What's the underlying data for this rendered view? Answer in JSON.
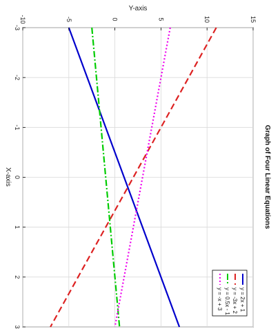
{
  "chart_data": {
    "type": "line",
    "orientation": "rotated-90-clockwise",
    "title": "Graph of Four Linear Equations",
    "xlabel": "X-axis",
    "ylabel": "Y-axis",
    "xlim": [
      -3,
      3
    ],
    "ylim": [
      -10,
      15
    ],
    "xticks": [
      -3,
      -2,
      -1,
      0,
      1,
      2,
      3
    ],
    "yticks": [
      -10,
      -5,
      0,
      5,
      10,
      15
    ],
    "grid": true,
    "legend_position": "bottom-right (rotated)",
    "series": [
      {
        "name": "y = 2x + 1",
        "color": "#0000cc",
        "dash": "solid",
        "x": [
          -3,
          3
        ],
        "y": [
          -5,
          7
        ]
      },
      {
        "name": "y = -3x + 2",
        "color": "#dd2222",
        "dash": "dashed",
        "x": [
          -3,
          3
        ],
        "y": [
          11,
          -7
        ]
      },
      {
        "name": "y = 0.5x - 1",
        "color": "#00cc00",
        "dash": "dashdot",
        "x": [
          -3,
          3
        ],
        "y": [
          -2.5,
          0.5
        ]
      },
      {
        "name": "y = -x + 3",
        "color": "#ee00ee",
        "dash": "dotted",
        "x": [
          -3,
          3
        ],
        "y": [
          6,
          0
        ]
      }
    ]
  }
}
